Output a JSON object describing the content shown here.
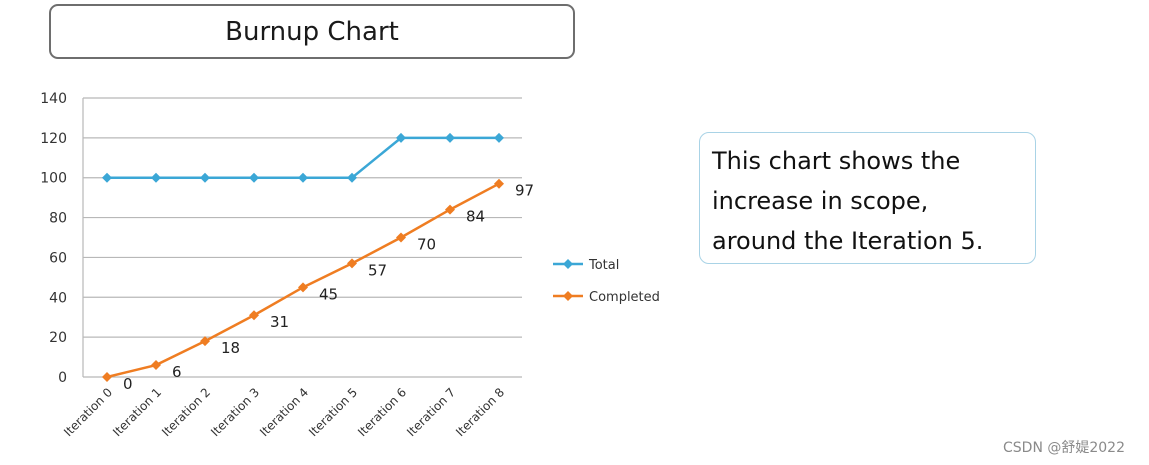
{
  "chart_data": {
    "type": "line",
    "title": "Burnup Chart",
    "categories": [
      "Iteration 0",
      "Iteration 1",
      "Iteration 2",
      "Iteration 3",
      "Iteration 4",
      "Iteration 5",
      "Iteration 6",
      "Iteration 7",
      "Iteration 8"
    ],
    "series": [
      {
        "name": "Total",
        "color": "#3ba7d6",
        "values": [
          100,
          100,
          100,
          100,
          100,
          100,
          120,
          120,
          120
        ]
      },
      {
        "name": "Completed",
        "color": "#ef7d22",
        "values": [
          0,
          6,
          18,
          31,
          45,
          57,
          70,
          84,
          97
        ],
        "data_labels": [
          "0",
          "6",
          "18",
          "31",
          "45",
          "57",
          "70",
          "84",
          "97"
        ]
      }
    ],
    "ylim": [
      0,
      140
    ],
    "yticks": [
      "0",
      "20",
      "40",
      "60",
      "80",
      "100",
      "120",
      "140"
    ],
    "grid": true,
    "legend_position": "right",
    "xlabel": "",
    "ylabel": ""
  },
  "note": {
    "lines": [
      "This chart shows the",
      "increase in scope,",
      "around the Iteration 5."
    ]
  },
  "watermark": "CSDN @舒媞2022"
}
